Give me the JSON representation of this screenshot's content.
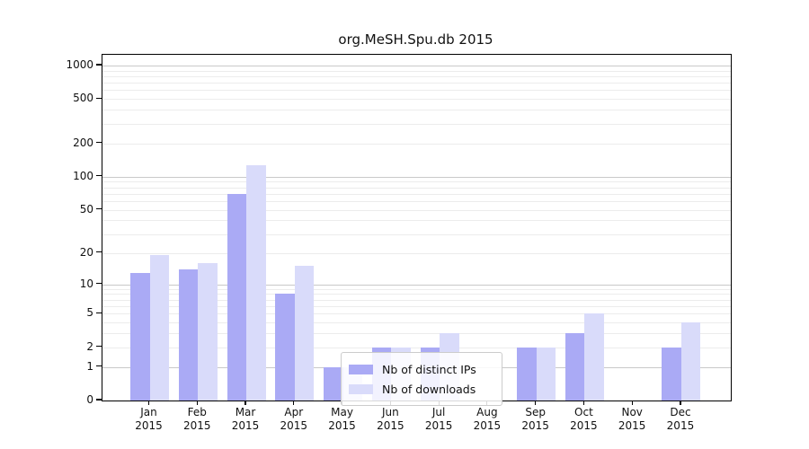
{
  "title": "org.MeSH.Spu.db 2015",
  "chart_data": {
    "type": "bar",
    "title": "org.MeSH.Spu.db 2015",
    "categories": [
      "Jan",
      "Feb",
      "Mar",
      "Apr",
      "May",
      "Jun",
      "Jul",
      "Aug",
      "Sep",
      "Oct",
      "Nov",
      "Dec"
    ],
    "category_year": "2015",
    "series": [
      {
        "name": "Nb of distinct IPs",
        "color": "#aaaaf5",
        "values": [
          13,
          14,
          70,
          8,
          1,
          2,
          2,
          0,
          2,
          3,
          0,
          2
        ]
      },
      {
        "name": "Nb of downloads",
        "color": "#d9dbfa",
        "values": [
          19,
          16,
          128,
          15,
          1,
          2,
          3,
          0,
          2,
          5,
          0,
          4
        ]
      }
    ],
    "xlabel": "",
    "ylabel": "",
    "yscale": "log1p",
    "ylim": [
      0,
      1250
    ],
    "yticks": [
      0,
      1,
      2,
      5,
      10,
      20,
      50,
      100,
      200,
      500,
      1000
    ],
    "major_gridlines": [
      1,
      10,
      100,
      1000
    ],
    "minor_gridlines": [
      2,
      3,
      4,
      5,
      6,
      7,
      8,
      9,
      20,
      30,
      40,
      50,
      60,
      70,
      80,
      90,
      200,
      300,
      400,
      500,
      600,
      700,
      800,
      900
    ],
    "grid": true,
    "legend_position": "inside lower-center-left",
    "axis_color": "#000000",
    "text_color": "#111111"
  }
}
